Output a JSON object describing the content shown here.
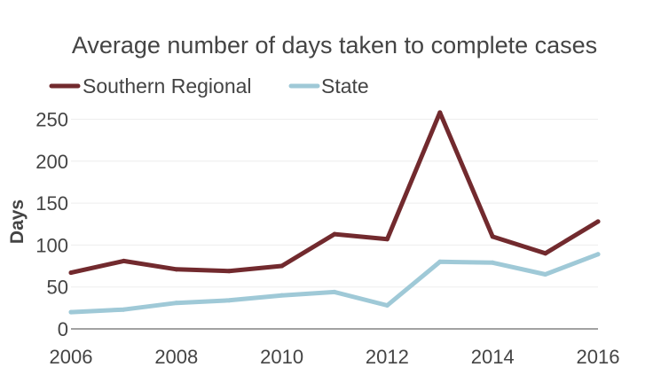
{
  "chart_data": {
    "type": "line",
    "title": "Average number of days taken to complete cases",
    "xlabel": "",
    "ylabel": "Days",
    "x": [
      2006,
      2007,
      2008,
      2009,
      2010,
      2011,
      2012,
      2013,
      2014,
      2015,
      2016
    ],
    "xlim": [
      2006,
      2016
    ],
    "ylim": [
      0,
      260
    ],
    "x_ticks": [
      "2006",
      "2008",
      "2010",
      "2012",
      "2014",
      "2016"
    ],
    "y_ticks": [
      "0",
      "50",
      "100",
      "150",
      "200",
      "250"
    ],
    "grid": true,
    "legend_position": "top-left",
    "series": [
      {
        "name": "Southern Regional",
        "color": "#722a2e",
        "values": [
          67,
          81,
          71,
          69,
          75,
          113,
          107,
          258,
          110,
          90,
          128
        ]
      },
      {
        "name": "State",
        "color": "#9fc9d7",
        "values": [
          20,
          23,
          31,
          34,
          40,
          44,
          28,
          80,
          79,
          65,
          89
        ]
      }
    ]
  }
}
